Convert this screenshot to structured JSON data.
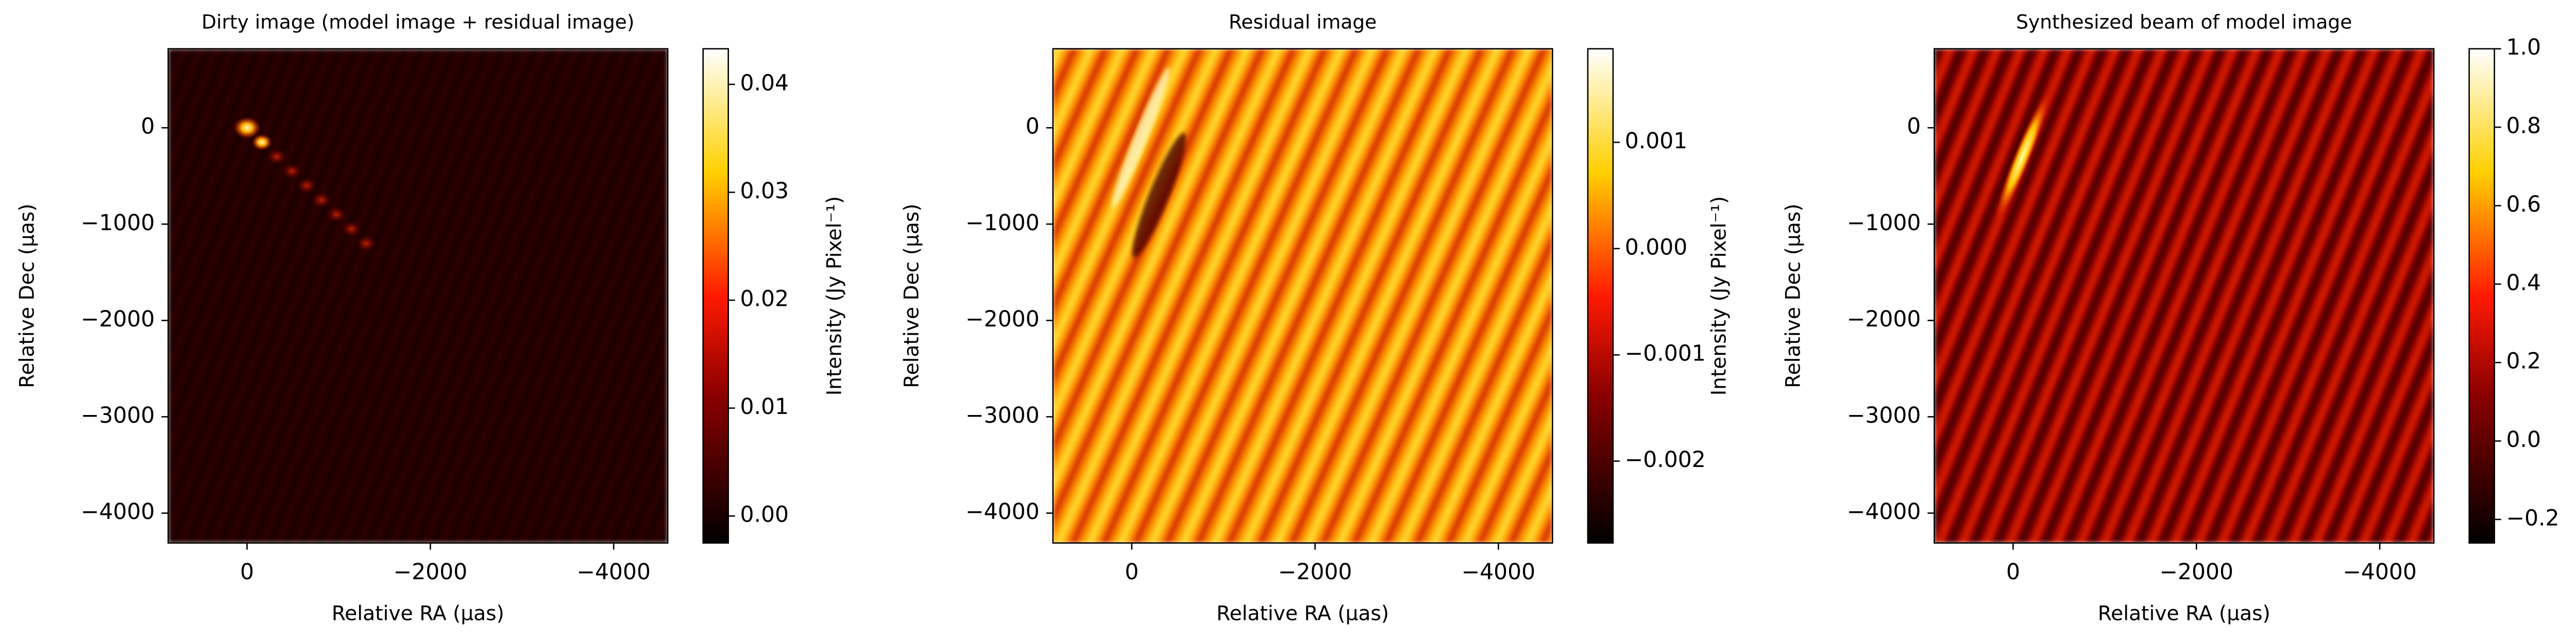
{
  "chart_data": [
    {
      "type": "heatmap",
      "title": "Dirty image (model image + residual image)",
      "x_label": "Relative RA (μas)",
      "y_label": "Relative Dec (μas)",
      "xlim": [
        860,
        -4590
      ],
      "xticks": [
        0,
        {
          "value": -2000,
          "label": "−2000"
        },
        {
          "value": -4000,
          "label": "−4000"
        }
      ],
      "ylim": [
        -4310,
        820
      ],
      "yticks": [
        0,
        {
          "value": -1000,
          "label": "−1000"
        },
        {
          "value": -2000,
          "label": "−2000"
        },
        {
          "value": -3000,
          "label": "−3000"
        },
        {
          "value": -4000,
          "label": "−4000"
        }
      ],
      "colorbar": {
        "label": "Intensity (Jy Pixel⁻¹)",
        "lim": [
          -0.0025,
          0.0433
        ],
        "ticks": [
          {
            "value": 0,
            "label": "0.00"
          },
          0.01,
          0.02,
          0.03,
          0.04
        ]
      }
    },
    {
      "type": "heatmap",
      "title": "Residual image",
      "x_label": "Relative RA (μas)",
      "y_label": "Relative Dec (μas)",
      "xlim": [
        860,
        -4590
      ],
      "xticks": [
        0,
        {
          "value": -2000,
          "label": "−2000"
        },
        {
          "value": -4000,
          "label": "−4000"
        }
      ],
      "ylim": [
        -4310,
        820
      ],
      "yticks": [
        0,
        {
          "value": -1000,
          "label": "−1000"
        },
        {
          "value": -2000,
          "label": "−2000"
        },
        {
          "value": -3000,
          "label": "−3000"
        },
        {
          "value": -4000,
          "label": "−4000"
        }
      ],
      "colorbar": {
        "label": "Intensity (Jy Pixel⁻¹)",
        "lim": [
          -0.00277,
          0.00188
        ],
        "ticks": [
          0.001,
          {
            "value": 0,
            "label": "0.000"
          },
          {
            "value": -0.001,
            "label": "−0.001"
          },
          {
            "value": -0.002,
            "label": "−0.002"
          }
        ]
      }
    },
    {
      "type": "heatmap",
      "title": "Synthesized beam of model image",
      "x_label": "Relative RA (μas)",
      "y_label": "Relative Dec (μas)",
      "xlim": [
        860,
        -4590
      ],
      "xticks": [
        0,
        {
          "value": -2000,
          "label": "−2000"
        },
        {
          "value": -4000,
          "label": "−4000"
        }
      ],
      "ylim": [
        -4310,
        820
      ],
      "yticks": [
        0,
        {
          "value": -1000,
          "label": "−1000"
        },
        {
          "value": -2000,
          "label": "−2000"
        },
        {
          "value": -3000,
          "label": "−3000"
        },
        {
          "value": -4000,
          "label": "−4000"
        }
      ],
      "colorbar": {
        "label": "Intensity (Jy Pixel⁻¹)",
        "lim": [
          -0.26,
          1.0
        ],
        "ticks": [
          {
            "value": 1,
            "label": "1.0"
          },
          0.8,
          0.6,
          0.4,
          0.2,
          {
            "value": 0,
            "label": "0.0"
          },
          {
            "value": -0.2,
            "label": "−0.2"
          }
        ]
      }
    }
  ]
}
